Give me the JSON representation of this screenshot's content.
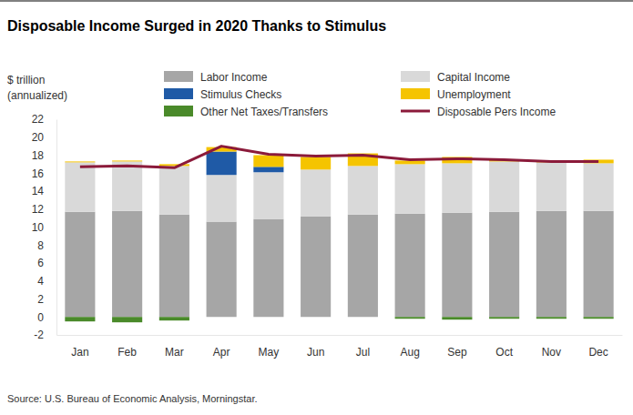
{
  "chart_data": {
    "type": "bar",
    "stacked": true,
    "title": "Disposable Income Surged in 2020 Thanks to Stimulus",
    "y_label": [
      "$ trillion",
      "(annualized)"
    ],
    "source": "Source: U.S. Bureau of Economic Analysis, Morningstar.",
    "categories": [
      "Jan",
      "Feb",
      "Mar",
      "Apr",
      "May",
      "Jun",
      "Jul",
      "Aug",
      "Sep",
      "Oct",
      "Nov",
      "Dec"
    ],
    "ylim": [
      -2,
      22
    ],
    "yticks": [
      -2,
      0,
      2,
      4,
      6,
      8,
      10,
      12,
      14,
      16,
      18,
      20,
      22
    ],
    "series": [
      {
        "name": "Labor Income",
        "color": "#a6a6a6",
        "values": [
          11.7,
          11.8,
          11.4,
          10.6,
          10.9,
          11.2,
          11.4,
          11.5,
          11.6,
          11.7,
          11.8,
          11.8
        ]
      },
      {
        "name": "Capital Income",
        "color": "#d9d9d9",
        "values": [
          5.5,
          5.5,
          5.4,
          5.2,
          5.2,
          5.2,
          5.4,
          5.5,
          5.5,
          5.6,
          5.4,
          5.3
        ]
      },
      {
        "name": "Stimulus Checks",
        "color": "#1f5aa6",
        "values": [
          0,
          0,
          0,
          2.6,
          0.6,
          0,
          0,
          0,
          0,
          0,
          0,
          0
        ]
      },
      {
        "name": "Unemployment",
        "color": "#f5c400",
        "values": [
          0.1,
          0.1,
          0.2,
          0.5,
          1.3,
          1.4,
          1.4,
          0.4,
          0.7,
          0.2,
          0.2,
          0.4
        ]
      },
      {
        "name": "Other Net Taxes/Transfers",
        "color": "#4a8a2a",
        "values": [
          -0.5,
          -0.6,
          -0.4,
          0,
          0,
          0,
          0,
          -0.2,
          -0.3,
          -0.2,
          -0.2,
          -0.2
        ]
      },
      {
        "name": "Disposable Pers Income",
        "color": "#8b1a3a",
        "type": "line",
        "values": [
          16.7,
          16.8,
          16.6,
          19.0,
          18.1,
          17.9,
          18.0,
          17.5,
          17.6,
          17.5,
          17.3,
          17.3
        ]
      }
    ]
  }
}
